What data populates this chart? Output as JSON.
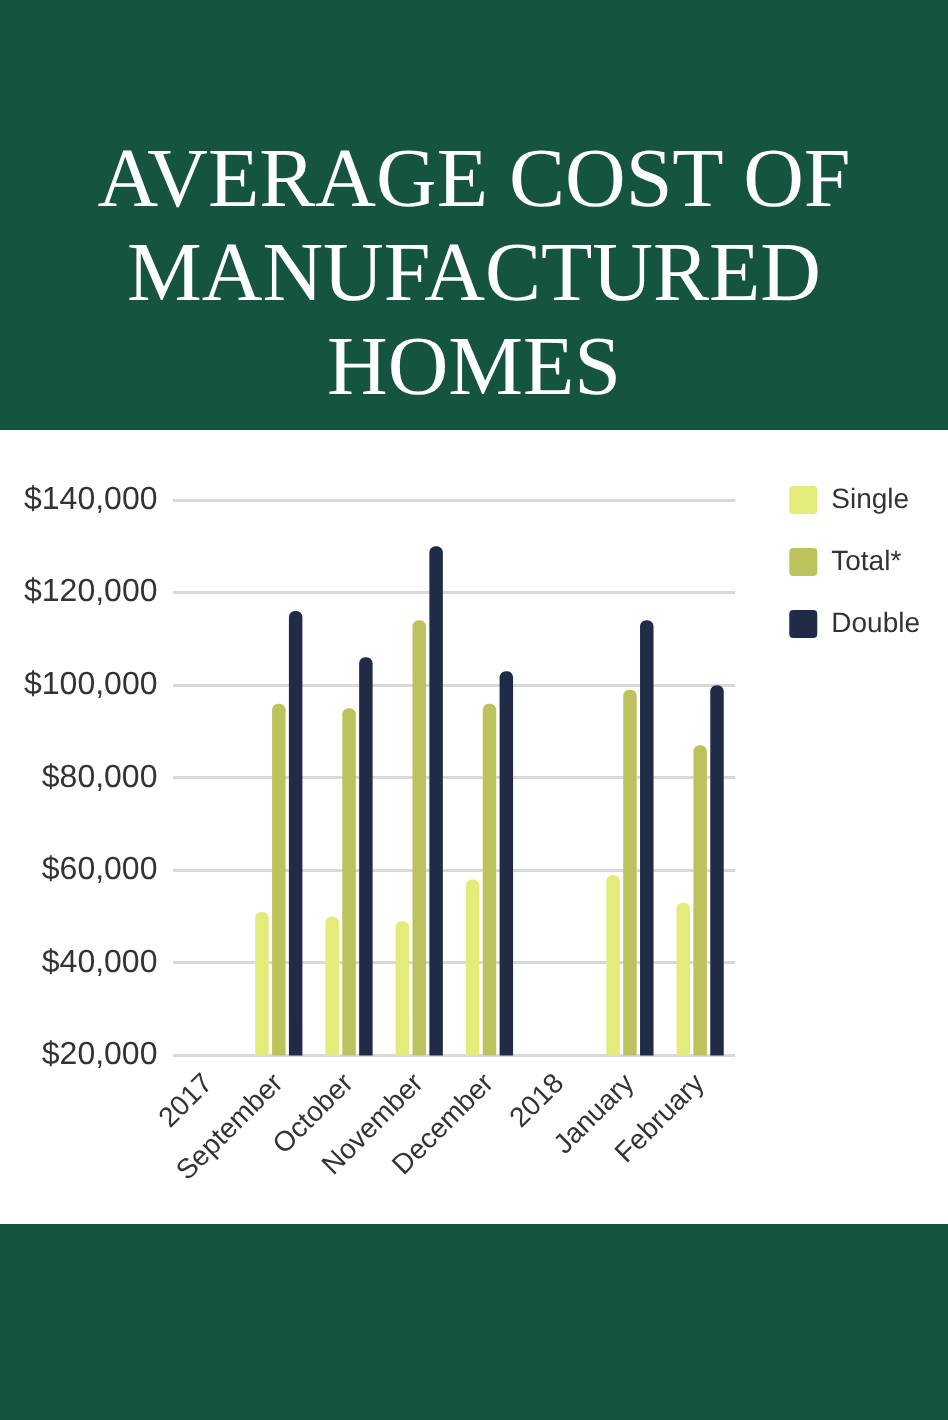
{
  "chart_data": {
    "type": "bar",
    "title": "AVERAGE COST OF MANUFACTURED HOMES",
    "categories": [
      "2017",
      "September",
      "October",
      "November",
      "December",
      "2018",
      "January",
      "February"
    ],
    "series": [
      {
        "name": "Single",
        "color": "#e3eb7b",
        "values": [
          null,
          51000,
          50000,
          49000,
          58000,
          null,
          59000,
          53000
        ]
      },
      {
        "name": "Total*",
        "color": "#bcc35c",
        "values": [
          null,
          96000,
          95000,
          114000,
          96000,
          null,
          99000,
          87000
        ]
      },
      {
        "name": "Double",
        "color": "#1f2b47",
        "values": [
          null,
          116000,
          106000,
          130000,
          103000,
          null,
          114000,
          100000
        ]
      }
    ],
    "ylim": [
      20000,
      140000
    ],
    "yticks": [
      {
        "value": 20000,
        "label": "$20,000"
      },
      {
        "value": 40000,
        "label": "$40,000"
      },
      {
        "value": 60000,
        "label": "$60,000"
      },
      {
        "value": 80000,
        "label": "$80,000"
      },
      {
        "value": 100000,
        "label": "$100,000"
      },
      {
        "value": 120000,
        "label": "$120,000"
      },
      {
        "value": 140000,
        "label": "$140,000"
      }
    ],
    "grid": "y",
    "legend": "top right"
  }
}
